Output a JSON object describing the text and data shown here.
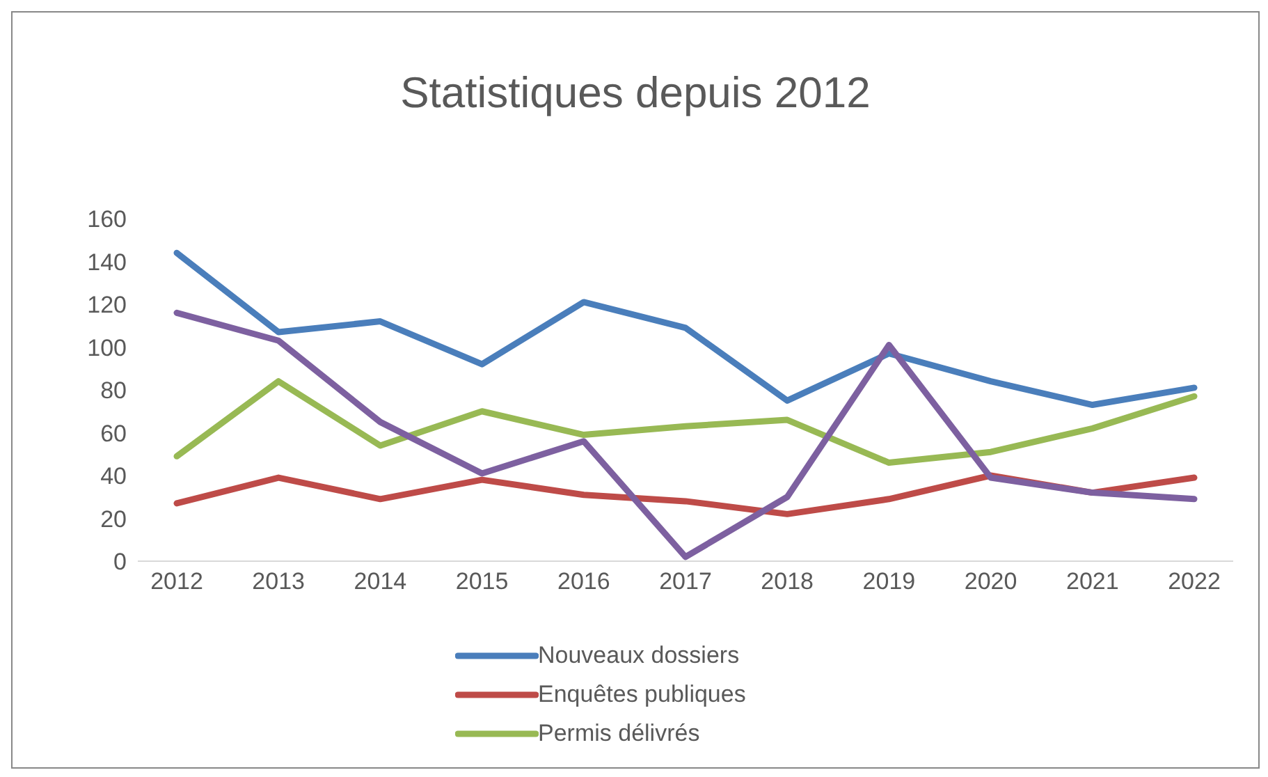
{
  "chart_data": {
    "type": "line",
    "title": "Statistiques depuis 2012",
    "categories": [
      "2012",
      "2013",
      "2014",
      "2015",
      "2016",
      "2017",
      "2018",
      "2019",
      "2020",
      "2021",
      "2022"
    ],
    "series": [
      {
        "name": "Nouveaux dossiers",
        "color": "#4a7ebb",
        "values": [
          144,
          107,
          112,
          92,
          121,
          109,
          75,
          97,
          84,
          73,
          81
        ]
      },
      {
        "name": "Enquêtes publiques",
        "color": "#be4b48",
        "values": [
          27,
          39,
          29,
          38,
          31,
          28,
          22,
          29,
          40,
          32,
          39
        ]
      },
      {
        "name": "Permis délivrés",
        "color": "#98b954",
        "values": [
          49,
          84,
          54,
          70,
          59,
          63,
          66,
          46,
          51,
          62,
          77
        ]
      },
      {
        "color": "#7d60a0",
        "values": [
          116,
          103,
          65,
          41,
          56,
          2,
          30,
          101,
          39,
          32,
          29
        ]
      }
    ],
    "ylim": [
      0,
      160
    ],
    "yticks": [
      0,
      20,
      40,
      60,
      80,
      100,
      120,
      140,
      160
    ],
    "grid": false,
    "legend": "bottom",
    "marker": "none",
    "line_style": "solid"
  }
}
